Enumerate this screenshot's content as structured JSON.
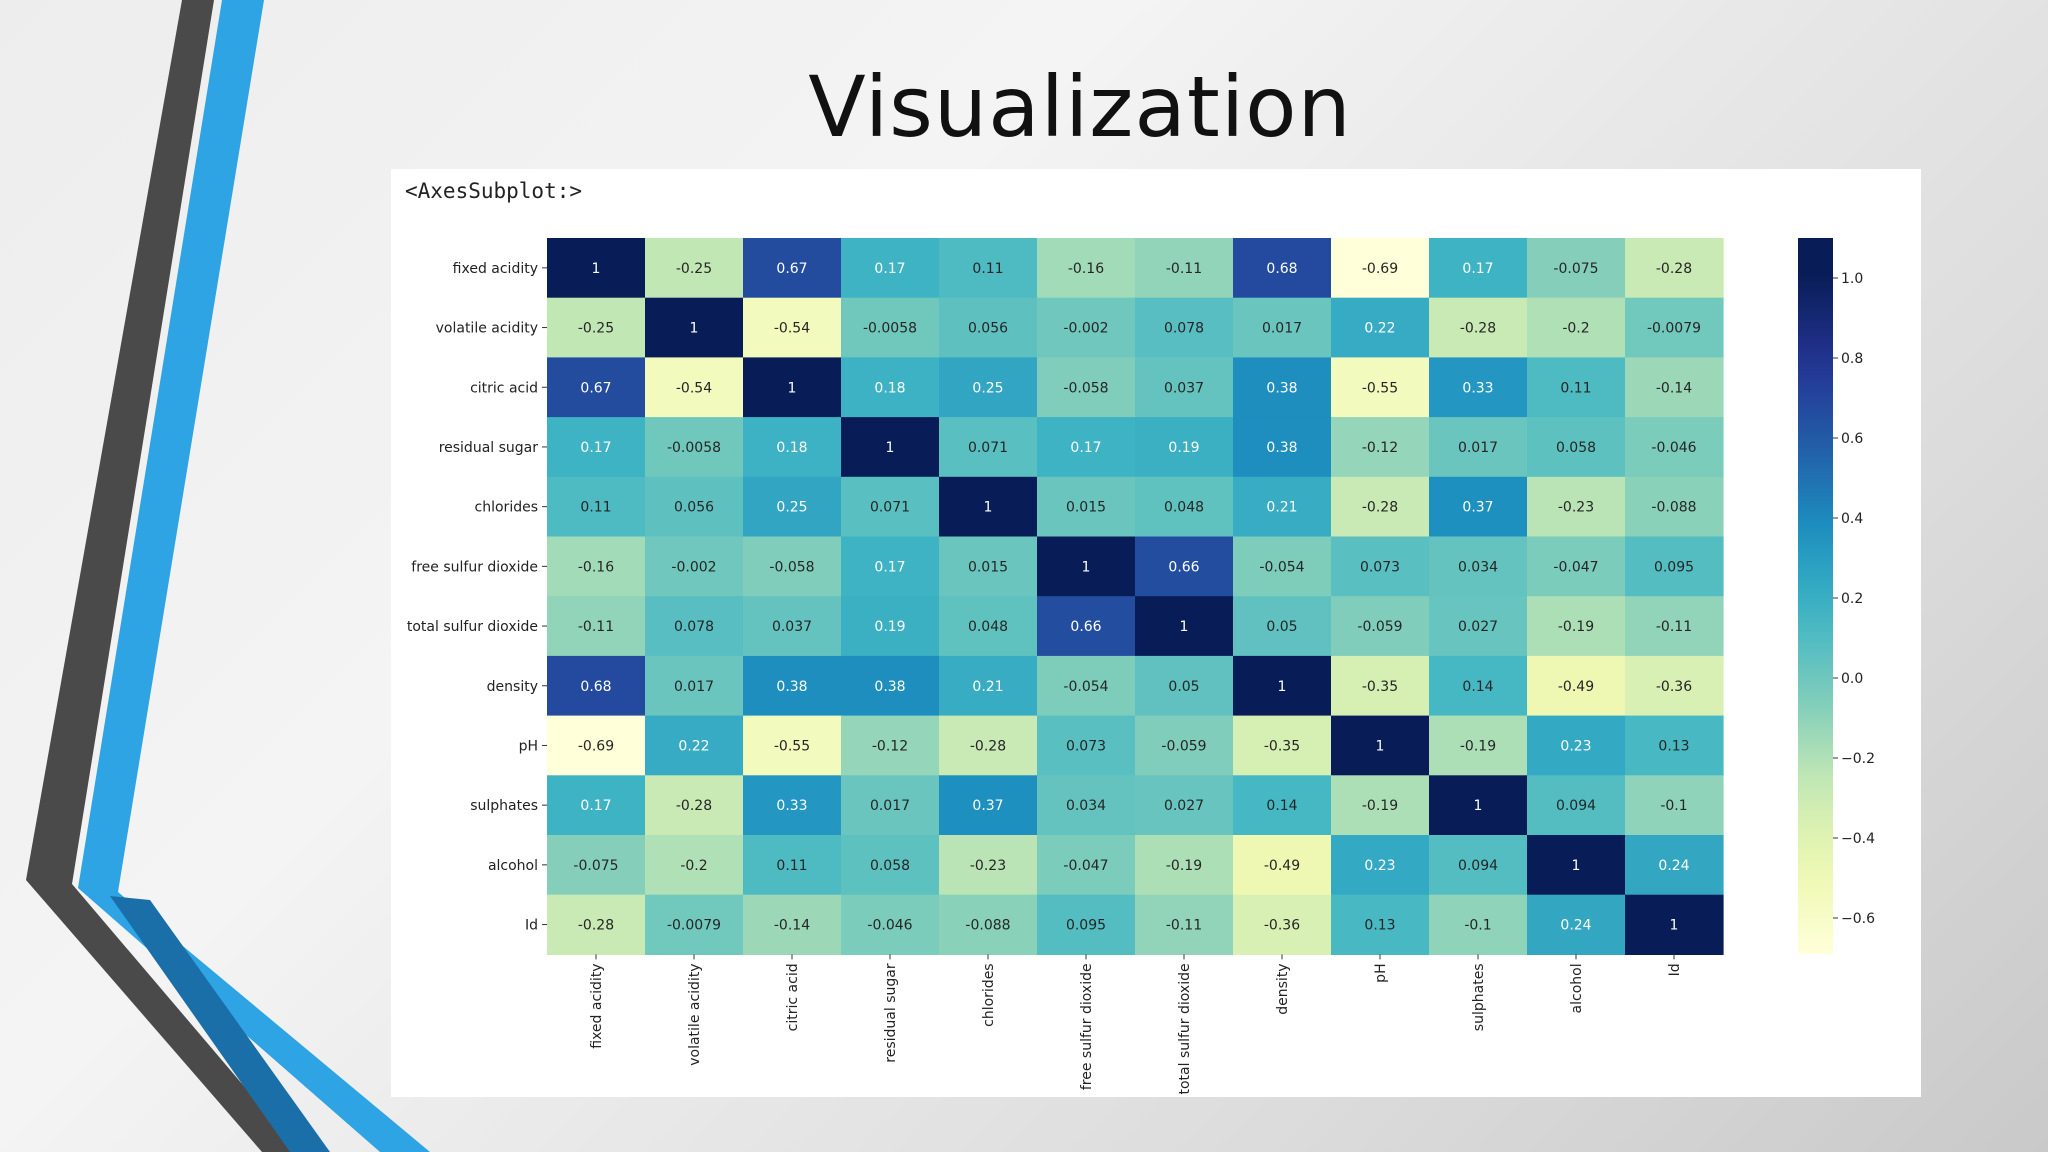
{
  "slide": {
    "title": "Visualization"
  },
  "output_label": "<AxesSubplot:>",
  "chart_data": {
    "type": "heatmap",
    "title": "",
    "xlabel": "",
    "ylabel": "",
    "colormap": "YlGnBu",
    "vmin": -0.69,
    "vmax": 1.0,
    "labels": [
      "fixed acidity",
      "volatile acidity",
      "citric acid",
      "residual sugar",
      "chlorides",
      "free sulfur dioxide",
      "total sulfur dioxide",
      "density",
      "pH",
      "sulphates",
      "alcohol",
      "Id"
    ],
    "values": [
      [
        1,
        -0.25,
        0.67,
        0.17,
        0.11,
        -0.16,
        -0.11,
        0.68,
        -0.69,
        0.17,
        -0.075,
        -0.28
      ],
      [
        -0.25,
        1,
        -0.54,
        -0.0058,
        0.056,
        -0.002,
        0.078,
        0.017,
        0.22,
        -0.28,
        -0.2,
        -0.0079
      ],
      [
        0.67,
        -0.54,
        1,
        0.18,
        0.25,
        -0.058,
        0.037,
        0.38,
        -0.55,
        0.33,
        0.11,
        -0.14
      ],
      [
        0.17,
        -0.0058,
        0.18,
        1,
        0.071,
        0.17,
        0.19,
        0.38,
        -0.12,
        0.017,
        0.058,
        -0.046
      ],
      [
        0.11,
        0.056,
        0.25,
        0.071,
        1,
        0.015,
        0.048,
        0.21,
        -0.28,
        0.37,
        -0.23,
        -0.088
      ],
      [
        -0.16,
        -0.002,
        -0.058,
        0.17,
        0.015,
        1,
        0.66,
        -0.054,
        0.073,
        0.034,
        -0.047,
        0.095
      ],
      [
        -0.11,
        0.078,
        0.037,
        0.19,
        0.048,
        0.66,
        1,
        0.05,
        -0.059,
        0.027,
        -0.19,
        -0.11
      ],
      [
        0.68,
        0.017,
        0.38,
        0.38,
        0.21,
        -0.054,
        0.05,
        1,
        -0.35,
        0.14,
        -0.49,
        -0.36
      ],
      [
        -0.69,
        0.22,
        -0.55,
        -0.12,
        -0.28,
        0.073,
        -0.059,
        -0.35,
        1,
        -0.19,
        0.23,
        0.13
      ],
      [
        0.17,
        -0.28,
        0.33,
        0.017,
        0.37,
        0.034,
        0.027,
        0.14,
        -0.19,
        1,
        0.094,
        -0.1
      ],
      [
        -0.075,
        -0.2,
        0.11,
        0.058,
        -0.23,
        -0.047,
        -0.19,
        -0.49,
        0.23,
        0.094,
        1,
        0.24
      ],
      [
        -0.28,
        -0.0079,
        -0.14,
        -0.046,
        -0.088,
        0.095,
        -0.11,
        -0.36,
        0.13,
        -0.1,
        0.24,
        1
      ]
    ],
    "cell_labels": [
      [
        "1",
        "-0.25",
        "0.67",
        "0.17",
        "0.11",
        "-0.16",
        "-0.11",
        "0.68",
        "-0.69",
        "0.17",
        "-0.075",
        "-0.28"
      ],
      [
        "-0.25",
        "1",
        "-0.54",
        "-0.0058",
        "0.056",
        "-0.002",
        "0.078",
        "0.017",
        "0.22",
        "-0.28",
        "-0.2",
        "-0.0079"
      ],
      [
        "0.67",
        "-0.54",
        "1",
        "0.18",
        "0.25",
        "-0.058",
        "0.037",
        "0.38",
        "-0.55",
        "0.33",
        "0.11",
        "-0.14"
      ],
      [
        "0.17",
        "-0.0058",
        "0.18",
        "1",
        "0.071",
        "0.17",
        "0.19",
        "0.38",
        "-0.12",
        "0.017",
        "0.058",
        "-0.046"
      ],
      [
        "0.11",
        "0.056",
        "0.25",
        "0.071",
        "1",
        "0.015",
        "0.048",
        "0.21",
        "-0.28",
        "0.37",
        "-0.23",
        "-0.088"
      ],
      [
        "-0.16",
        "-0.002",
        "-0.058",
        "0.17",
        "0.015",
        "1",
        "0.66",
        "-0.054",
        "0.073",
        "0.034",
        "-0.047",
        "0.095"
      ],
      [
        "-0.11",
        "0.078",
        "0.037",
        "0.19",
        "0.048",
        "0.66",
        "1",
        "0.05",
        "-0.059",
        "0.027",
        "-0.19",
        "-0.11"
      ],
      [
        "0.68",
        "0.017",
        "0.38",
        "0.38",
        "0.21",
        "-0.054",
        "0.05",
        "1",
        "-0.35",
        "0.14",
        "-0.49",
        "-0.36"
      ],
      [
        "-0.69",
        "0.22",
        "-0.55",
        "-0.12",
        "-0.28",
        "0.073",
        "-0.059",
        "-0.35",
        "1",
        "-0.19",
        "0.23",
        "0.13"
      ],
      [
        "0.17",
        "-0.28",
        "0.33",
        "0.017",
        "0.37",
        "0.034",
        "0.027",
        "0.14",
        "-0.19",
        "1",
        "0.094",
        "-0.1"
      ],
      [
        "-0.075",
        "-0.2",
        "0.11",
        "0.058",
        "-0.23",
        "-0.047",
        "-0.19",
        "-0.49",
        "0.23",
        "0.094",
        "1",
        "0.24"
      ],
      [
        "-0.28",
        "-0.0079",
        "-0.14",
        "-0.046",
        "-0.088",
        "0.095",
        "-0.11",
        "-0.36",
        "0.13",
        "-0.1",
        "0.24",
        "1"
      ]
    ],
    "colorbar_ticks": [
      1.0,
      0.8,
      0.6,
      0.4,
      0.2,
      0.0,
      -0.2,
      -0.4,
      -0.6
    ],
    "colorbar_tick_labels": [
      "1.0",
      "0.8",
      "0.6",
      "0.4",
      "0.2",
      "0.0",
      "−0.2",
      "−0.4",
      "−0.6"
    ]
  }
}
